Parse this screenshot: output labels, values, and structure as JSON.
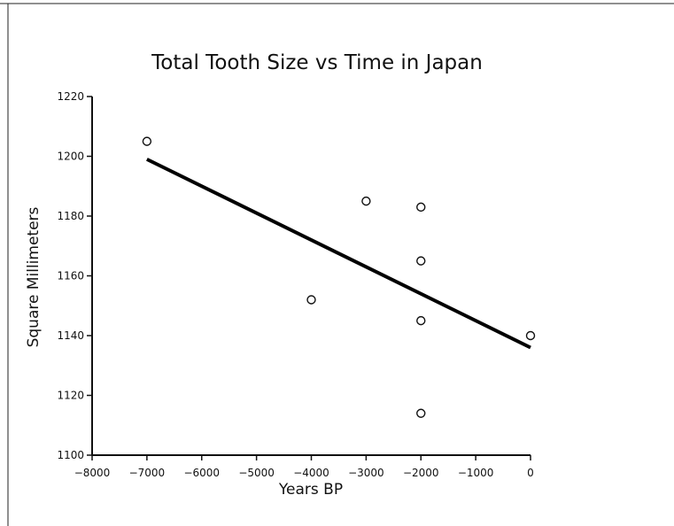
{
  "chart_data": {
    "type": "scatter",
    "title": "Total Tooth Size vs Time in Japan",
    "xlabel": "Years BP",
    "ylabel": "Square Millimeters",
    "xlim": [
      -8000,
      0
    ],
    "ylim": [
      1100,
      1220
    ],
    "x_ticks": [
      -8000,
      -7000,
      -6000,
      -5000,
      -4000,
      -3000,
      -2000,
      -1000,
      0
    ],
    "x_tick_labels": [
      "−8000",
      "−7000",
      "−6000",
      "−5000",
      "−4000",
      "−3000",
      "−2000",
      "−1000",
      "0"
    ],
    "y_ticks": [
      1100,
      1120,
      1140,
      1160,
      1180,
      1200,
      1220
    ],
    "y_tick_labels": [
      "1100",
      "1120",
      "1140",
      "1160",
      "1180",
      "1200",
      "1220"
    ],
    "grid": false,
    "points": [
      {
        "x": -7000,
        "y": 1205
      },
      {
        "x": -4000,
        "y": 1152
      },
      {
        "x": -3000,
        "y": 1185
      },
      {
        "x": -2000,
        "y": 1183
      },
      {
        "x": -2000,
        "y": 1165
      },
      {
        "x": -2000,
        "y": 1145
      },
      {
        "x": -2000,
        "y": 1114
      },
      {
        "x": 0,
        "y": 1140
      }
    ],
    "trend_line": {
      "x": [
        -7000,
        0
      ],
      "y": [
        1199,
        1136
      ]
    }
  }
}
